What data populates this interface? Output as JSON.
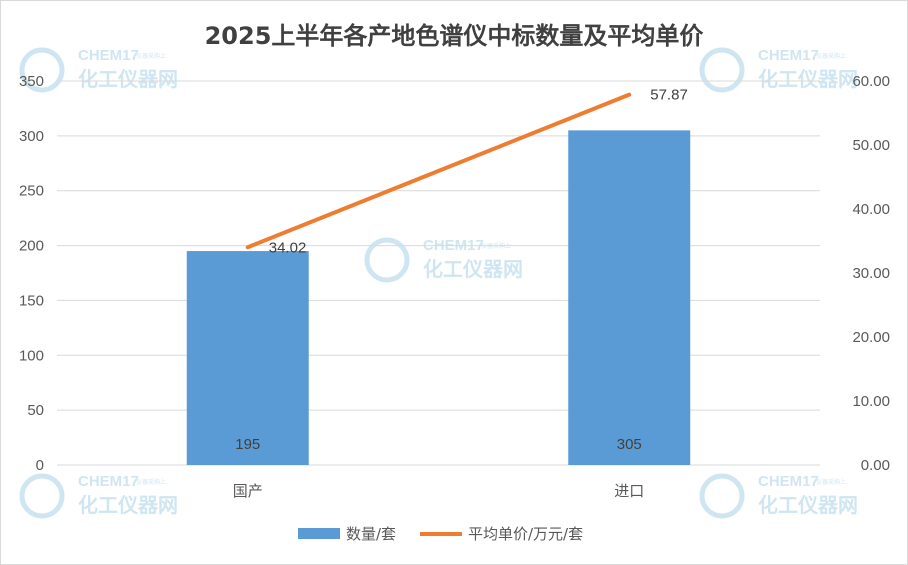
{
  "chart_data": {
    "type": "bar",
    "title": "2025上半年各产地色谱仪中标数量及平均单价",
    "categories": [
      "国产",
      "进口"
    ],
    "series": [
      {
        "name": "数量/套",
        "type": "bar",
        "axis": "left",
        "values": [
          195,
          305
        ],
        "labels": [
          "195",
          "305"
        ],
        "color": "#5b9bd5"
      },
      {
        "name": "平均单价/万元/套",
        "type": "line",
        "axis": "right",
        "values": [
          34.02,
          57.87
        ],
        "labels": [
          "34.02",
          "57.87"
        ],
        "color": "#ed7d31"
      }
    ],
    "ylim_left": [
      0,
      350
    ],
    "yticks_left": [
      "0",
      "50",
      "100",
      "150",
      "200",
      "250",
      "300",
      "350"
    ],
    "ylim_right": [
      0,
      60
    ],
    "yticks_right": [
      "0.00",
      "10.00",
      "20.00",
      "30.00",
      "40.00",
      "50.00",
      "60.00"
    ],
    "grid": true,
    "legend_position": "bottom"
  },
  "watermark": {
    "brand_en": "CHEM17",
    "brand_tagline": "仪器采购上",
    "brand_cn": "化工仪器网"
  }
}
